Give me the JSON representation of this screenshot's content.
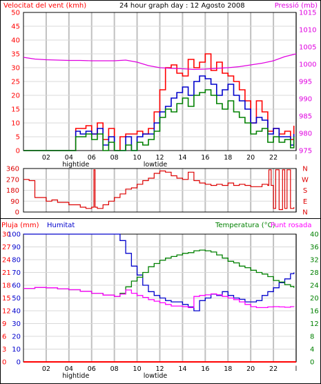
{
  "header": {
    "left_label": "Velocitat del vent (kmh)",
    "title": "24 hour graph day : 12 Agosto 2008",
    "right_label": "Pressió (mb)"
  },
  "colors": {
    "wind_axis": "#ff0000",
    "pressure_axis": "#e000e0",
    "wind_gust": "#ff0000",
    "wind_avg": "#0000cc",
    "wind_other": "#008000",
    "pressure_line": "#e000e0",
    "direction_line": "#dd0000",
    "temperature_line": "#008000",
    "dewpoint_line": "#ff00ff",
    "humidity_line": "#0000cc",
    "rain_line": "#ff0000",
    "grid": "#c0c0c0",
    "frame": "#000000"
  },
  "chart_data": [
    {
      "type": "line",
      "panel": "wind-pressure",
      "title": "24 hour graph day : 12 Agosto 2008",
      "xlabel": "",
      "ylabel_left": "Velocitat del vent (kmh)",
      "ylabel_right": "Pressió (mb)",
      "x_ticks": [
        "02",
        "04",
        "06",
        "08",
        "10",
        "12",
        "14",
        "16",
        "18",
        "20",
        "22",
        "l"
      ],
      "x_annotations": [
        {
          "x": 4,
          "text": "hightide"
        },
        {
          "x": 11,
          "text": "lowtide"
        }
      ],
      "xlim": [
        0,
        24
      ],
      "ylim_left": [
        0,
        50
      ],
      "ylim_right": [
        975,
        1015
      ],
      "y_ticks_left": [
        "0",
        "5",
        "10",
        "15",
        "20",
        "25",
        "30",
        "35",
        "40",
        "45",
        "50"
      ],
      "y_ticks_right": [
        "975",
        "980",
        "985",
        "990",
        "995",
        "1000",
        "1005",
        "1010",
        "1015"
      ],
      "grid": true,
      "series": [
        {
          "name": "gust",
          "color": "#ff0000",
          "axis": "left",
          "x": [
            0,
            4.5,
            4.6,
            5.0,
            5.5,
            6.0,
            6.5,
            7.0,
            7.5,
            8.0,
            8.5,
            9.0,
            9.5,
            10.0,
            10.5,
            11.0,
            11.5,
            12.0,
            12.5,
            13.0,
            13.5,
            14.0,
            14.5,
            15.0,
            15.5,
            16.0,
            16.5,
            17.0,
            17.5,
            18.0,
            18.5,
            19.0,
            19.5,
            20.0,
            20.5,
            21.0,
            21.5,
            22.0,
            22.5,
            23.0,
            23.5,
            23.8
          ],
          "y": [
            0,
            0,
            8,
            8,
            9,
            6,
            10,
            4,
            8,
            0,
            5,
            6,
            6,
            7,
            6,
            8,
            14,
            22,
            30,
            31,
            28,
            27,
            33,
            30,
            32,
            35,
            29,
            32,
            28,
            27,
            25,
            22,
            18,
            10,
            18,
            14,
            7,
            8,
            6,
            7,
            4,
            9
          ]
        },
        {
          "name": "average",
          "color": "#0000cc",
          "axis": "left",
          "x": [
            0,
            4.5,
            4.6,
            5.0,
            5.5,
            6.0,
            6.5,
            7.0,
            7.5,
            8.0,
            8.5,
            9.0,
            9.5,
            10.0,
            10.5,
            11.0,
            11.5,
            12.0,
            12.5,
            13.0,
            13.5,
            14.0,
            14.5,
            15.0,
            15.5,
            16.0,
            16.5,
            17.0,
            17.5,
            18.0,
            18.5,
            19.0,
            19.5,
            20.0,
            20.5,
            21.0,
            21.5,
            22.0,
            22.5,
            23.0,
            23.5,
            23.8
          ],
          "y": [
            0,
            0,
            7,
            6,
            7,
            6,
            8,
            2,
            5,
            0,
            0,
            5,
            0,
            5,
            6,
            6,
            10,
            14,
            16,
            19,
            21,
            23,
            20,
            25,
            27,
            26,
            24,
            20,
            22,
            24,
            20,
            18,
            15,
            10,
            12,
            11,
            6,
            8,
            5,
            5,
            2,
            6
          ]
        },
        {
          "name": "other",
          "color": "#008000",
          "axis": "left",
          "x": [
            0,
            4.5,
            4.6,
            5.0,
            5.5,
            6.0,
            6.5,
            7.0,
            7.5,
            8.0,
            8.5,
            9.0,
            9.5,
            10.0,
            10.5,
            11.0,
            11.5,
            12.0,
            12.5,
            13.0,
            13.5,
            14.0,
            14.5,
            15.0,
            15.5,
            16.0,
            16.5,
            17.0,
            17.5,
            18.0,
            18.5,
            19.0,
            19.5,
            20.0,
            20.5,
            21.0,
            21.5,
            22.0,
            22.5,
            23.0,
            23.5,
            23.8
          ],
          "y": [
            0,
            0,
            5,
            5,
            6,
            4,
            6,
            0,
            3,
            0,
            0,
            2,
            0,
            3,
            2,
            4,
            7,
            12,
            15,
            14,
            17,
            19,
            16,
            20,
            21,
            22,
            20,
            17,
            15,
            18,
            14,
            12,
            10,
            6,
            7,
            8,
            3,
            5,
            3,
            4,
            1,
            5
          ]
        },
        {
          "name": "pressure",
          "color": "#e000e0",
          "axis": "right",
          "x": [
            0,
            1,
            2,
            3,
            4,
            5,
            6,
            7,
            8,
            9,
            10,
            11,
            12,
            13,
            14,
            15,
            16,
            17,
            18,
            19,
            20,
            21,
            22,
            23,
            24
          ],
          "y": [
            1002,
            1001.5,
            1001.3,
            1001.2,
            1001.1,
            1001.1,
            1001.0,
            1001.0,
            1001.0,
            1001.2,
            1000.6,
            999.6,
            999.0,
            998.8,
            998.7,
            998.5,
            998.6,
            998.8,
            999.0,
            999.3,
            999.8,
            1000.3,
            1001.0,
            1002.2,
            1003.0
          ]
        }
      ]
    },
    {
      "type": "line",
      "panel": "wind-direction",
      "ylim": [
        0,
        360
      ],
      "y_ticks_left": [
        "0",
        "90",
        "180",
        "270",
        "360"
      ],
      "y_ticks_right": [
        "N",
        "E",
        "S",
        "W",
        "N"
      ],
      "grid": true,
      "series": [
        {
          "name": "direction",
          "color": "#dd0000",
          "x": [
            0,
            0.5,
            1,
            2,
            2.5,
            3,
            4,
            5,
            5.5,
            6,
            6.2,
            6.3,
            6.5,
            7,
            7.5,
            8,
            8.5,
            9,
            9.5,
            10,
            10.5,
            11,
            11.5,
            12,
            12.5,
            13,
            13.5,
            14,
            14.5,
            15,
            15.5,
            16,
            16.5,
            17,
            17.5,
            18,
            18.5,
            19,
            19.5,
            20,
            20.5,
            21,
            21.5,
            21.6,
            21.8,
            22,
            22.2,
            22.5,
            22.8,
            23,
            23.2,
            23.5,
            23.8
          ],
          "y": [
            270,
            260,
            120,
            90,
            100,
            80,
            60,
            40,
            30,
            40,
            350,
            40,
            30,
            60,
            90,
            120,
            150,
            190,
            200,
            230,
            260,
            280,
            320,
            340,
            330,
            300,
            280,
            270,
            330,
            260,
            240,
            230,
            220,
            230,
            220,
            240,
            220,
            230,
            220,
            210,
            210,
            230,
            220,
            350,
            220,
            30,
            350,
            20,
            350,
            30,
            350,
            30,
            40
          ]
        }
      ]
    },
    {
      "type": "line",
      "panel": "temperature-humidity",
      "ylabel_left": "Pluja (mm)",
      "ylabel_left2": "Humitat",
      "ylabel_right": "Temperatura (°C)",
      "ylabel_right2": "Punt rosada",
      "x_ticks": [
        "02",
        "04",
        "06",
        "08",
        "10",
        "12",
        "14",
        "16",
        "18",
        "20",
        "22",
        "l"
      ],
      "x_annotations": [
        {
          "x": 4,
          "text": "hightide"
        },
        {
          "x": 11,
          "text": "lowtide"
        }
      ],
      "y_ticks_rain": [
        "0",
        "3",
        "6",
        "9",
        "12",
        "15",
        "18",
        "21",
        "24",
        "27",
        "30"
      ],
      "y_ticks_humidity": [
        "0",
        "10",
        "20",
        "30",
        "40",
        "50",
        "60",
        "70",
        "80",
        "90",
        "100"
      ],
      "y_ticks_temperature": [
        "0",
        "4",
        "8",
        "12",
        "16",
        "20",
        "24",
        "28",
        "32",
        "36",
        "40"
      ],
      "grid": true,
      "series": [
        {
          "name": "humitat",
          "color": "#0000cc",
          "axis": "humidity",
          "x": [
            0,
            2,
            4,
            6,
            7,
            8,
            8.5,
            9,
            9.5,
            10,
            10.5,
            11,
            11.5,
            12,
            12.5,
            13,
            13.5,
            14,
            14.5,
            15,
            15.5,
            16,
            16.5,
            17,
            17.5,
            18,
            18.5,
            19,
            19.5,
            20,
            20.5,
            21,
            21.5,
            22,
            22.5,
            23,
            23.5,
            23.8
          ],
          "y": [
            100,
            100,
            100,
            100,
            100,
            100,
            95,
            85,
            75,
            68,
            60,
            55,
            52,
            50,
            48,
            47,
            47,
            45,
            43,
            40,
            48,
            50,
            53,
            52,
            55,
            52,
            50,
            49,
            47,
            47,
            48,
            52,
            55,
            58,
            62,
            65,
            69,
            70
          ]
        },
        {
          "name": "temperatura",
          "color": "#008000",
          "axis": "temperature",
          "x": [
            0,
            1,
            2,
            3,
            4,
            5,
            6,
            7,
            8,
            8.5,
            9,
            9.5,
            10,
            10.5,
            11,
            11.5,
            12,
            12.5,
            13,
            13.5,
            14,
            14.5,
            15,
            15.5,
            16,
            16.5,
            17,
            17.5,
            18,
            18.5,
            19,
            19.5,
            20,
            20.5,
            21,
            21.5,
            22,
            22.5,
            23,
            23.5,
            23.8
          ],
          "y": [
            23,
            23.3,
            23.2,
            22.9,
            22.6,
            22.1,
            21.5,
            20.9,
            20.5,
            21.5,
            23.5,
            25.3,
            26.5,
            28,
            29.8,
            30.8,
            31.8,
            32.5,
            33,
            33.5,
            34,
            34.2,
            34.8,
            35,
            34.8,
            34.4,
            33.5,
            32.5,
            31.5,
            31,
            30,
            29.5,
            28.7,
            28,
            27.5,
            26.7,
            25.5,
            25,
            24.2,
            23.6,
            23.2
          ]
        },
        {
          "name": "punt rosada",
          "color": "#ff00ff",
          "axis": "temperature",
          "x": [
            0,
            1,
            2,
            3,
            4,
            5,
            6,
            7,
            8,
            8.5,
            9,
            9.5,
            10,
            10.5,
            11,
            11.5,
            12,
            12.5,
            13,
            13.5,
            14,
            14.5,
            15,
            15.5,
            16,
            16.5,
            17,
            17.5,
            18,
            18.5,
            19,
            19.5,
            20,
            20.5,
            21,
            21.5,
            22,
            22.5,
            23,
            23.5,
            23.8
          ],
          "y": [
            23,
            23.3,
            23.2,
            22.9,
            22.6,
            22.1,
            21.5,
            20.9,
            20.5,
            21.2,
            22.5,
            21.5,
            20.8,
            20.2,
            19.5,
            19,
            18.5,
            18,
            17.5,
            17.5,
            17.3,
            17,
            20.5,
            20.8,
            21,
            21.3,
            21,
            20.5,
            20,
            19.5,
            18.8,
            18,
            17.3,
            17,
            17,
            17.2,
            17.3,
            17.2,
            17.1,
            17.3,
            17.2
          ]
        },
        {
          "name": "pluja",
          "color": "#ff0000",
          "axis": "rain",
          "x": [
            0,
            24
          ],
          "y": [
            0,
            0
          ]
        }
      ]
    }
  ]
}
